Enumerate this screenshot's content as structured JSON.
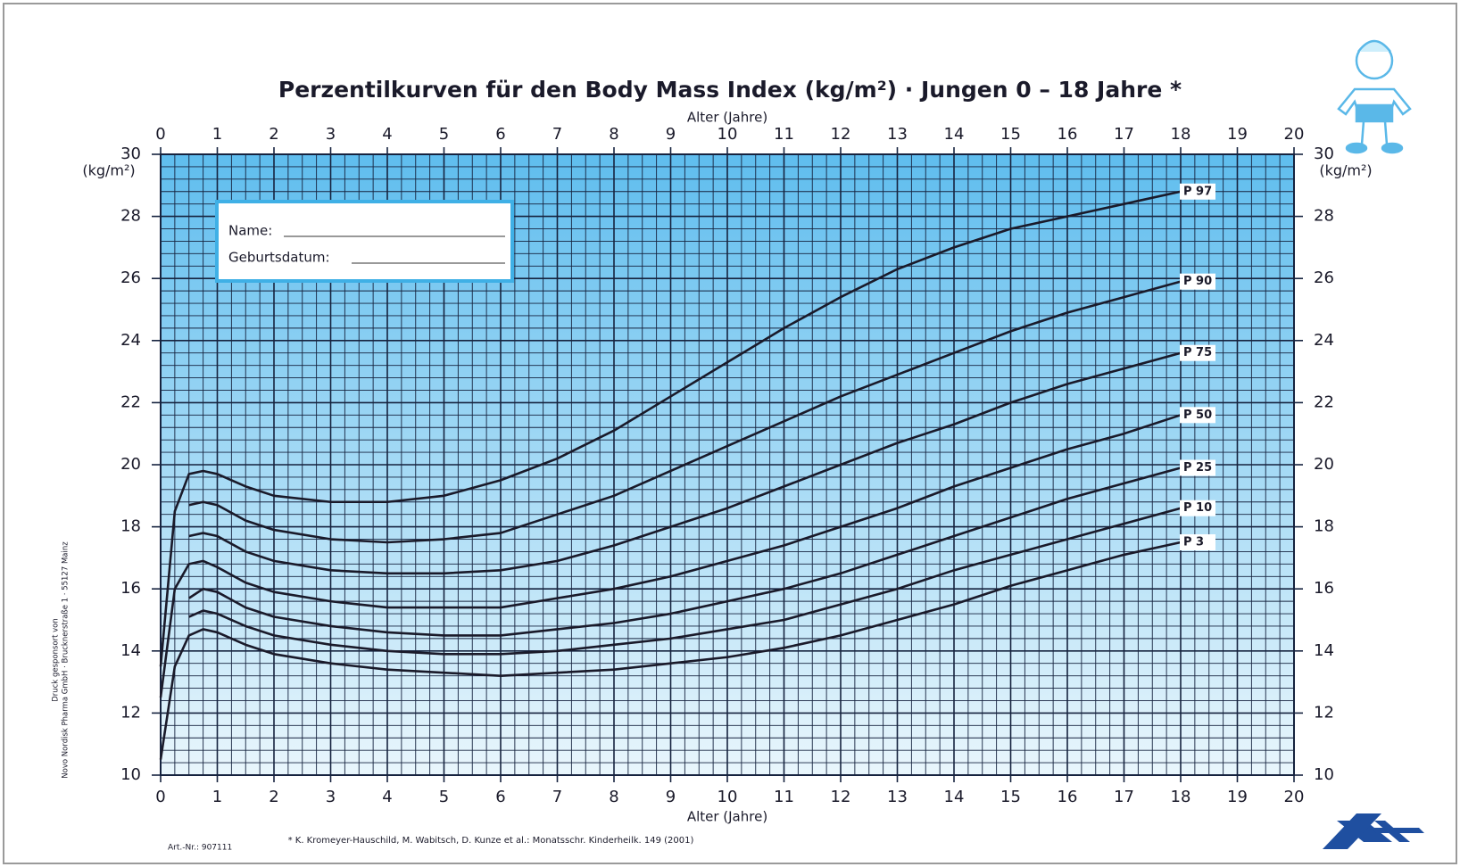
{
  "chart_data": {
    "type": "line",
    "title": "Perzentilkurven für den Body Mass Index (kg/m²) · Jungen 0 – 18 Jahre *",
    "x_label": "Alter (Jahre)",
    "y_label": "(kg/m²)",
    "x": [
      0,
      0.25,
      0.5,
      0.75,
      1,
      1.5,
      2,
      3,
      4,
      5,
      6,
      7,
      8,
      9,
      10,
      11,
      12,
      13,
      14,
      15,
      16,
      17,
      18
    ],
    "series": [
      {
        "name": "P 97",
        "color": "#1a1a2a",
        "values": [
          13.5,
          18.5,
          19.7,
          19.8,
          19.7,
          19.3,
          19.0,
          18.8,
          18.8,
          19.0,
          19.5,
          20.2,
          21.1,
          22.2,
          23.3,
          24.4,
          25.4,
          26.3,
          27.0,
          27.6,
          28.0,
          28.4,
          28.8
        ]
      },
      {
        "name": "P 90",
        "color": "#1a1a2a",
        "values": [
          null,
          null,
          18.7,
          18.8,
          18.7,
          18.2,
          17.9,
          17.6,
          17.5,
          17.6,
          17.8,
          18.4,
          19.0,
          19.8,
          20.6,
          21.4,
          22.2,
          22.9,
          23.6,
          24.3,
          24.9,
          25.4,
          25.9
        ]
      },
      {
        "name": "P 75",
        "color": "#1a1a2a",
        "values": [
          null,
          null,
          17.7,
          17.8,
          17.7,
          17.2,
          16.9,
          16.6,
          16.5,
          16.5,
          16.6,
          16.9,
          17.4,
          18.0,
          18.6,
          19.3,
          20.0,
          20.7,
          21.3,
          22.0,
          22.6,
          23.1,
          23.6
        ]
      },
      {
        "name": "P 50",
        "color": "#1a1a2a",
        "values": [
          12.5,
          16.0,
          16.8,
          16.9,
          16.7,
          16.2,
          15.9,
          15.6,
          15.4,
          15.4,
          15.4,
          15.7,
          16.0,
          16.4,
          16.9,
          17.4,
          18.0,
          18.6,
          19.3,
          19.9,
          20.5,
          21.0,
          21.6
        ]
      },
      {
        "name": "P 25",
        "color": "#1a1a2a",
        "values": [
          null,
          null,
          15.7,
          16.0,
          15.9,
          15.4,
          15.1,
          14.8,
          14.6,
          14.5,
          14.5,
          14.7,
          14.9,
          15.2,
          15.6,
          16.0,
          16.5,
          17.1,
          17.7,
          18.3,
          18.9,
          19.4,
          19.9
        ]
      },
      {
        "name": "P 10",
        "color": "#1a1a2a",
        "values": [
          null,
          null,
          15.1,
          15.3,
          15.2,
          14.8,
          14.5,
          14.2,
          14.0,
          13.9,
          13.9,
          14.0,
          14.2,
          14.4,
          14.7,
          15.0,
          15.5,
          16.0,
          16.6,
          17.1,
          17.6,
          18.1,
          18.6
        ]
      },
      {
        "name": "P 3",
        "color": "#1a1a2a",
        "values": [
          10.5,
          13.5,
          14.5,
          14.7,
          14.6,
          14.2,
          13.9,
          13.6,
          13.4,
          13.3,
          13.2,
          13.3,
          13.4,
          13.6,
          13.8,
          14.1,
          14.5,
          15.0,
          15.5,
          16.1,
          16.6,
          17.1,
          17.5
        ]
      }
    ],
    "xlim": [
      0,
      20
    ],
    "xticks": [
      0,
      1,
      2,
      3,
      4,
      5,
      6,
      7,
      8,
      9,
      10,
      11,
      12,
      13,
      14,
      15,
      16,
      17,
      18,
      19,
      20
    ],
    "ylim": [
      10,
      30
    ],
    "yticks": [
      10,
      12,
      14,
      16,
      18,
      20,
      22,
      24,
      26,
      28,
      30
    ],
    "grid": true,
    "minor_grid": {
      "x_step": 0.25,
      "y_step": 0.4
    },
    "form": {
      "name_label": "Name:",
      "birth_label": "Geburtsdatum:"
    },
    "footnote": "* K. Kromeyer-Hauschild, M. Wabitsch, D. Kunze et al.: Monatsschr. Kinderheilk. 149 (2001)",
    "article_number": "Art.-Nr.: 907111",
    "sponsor": [
      "Druck gesponsort von",
      "Novo Nordisk Pharma GmbH · Brucknerstraße 1 · 55127 Mainz"
    ]
  }
}
